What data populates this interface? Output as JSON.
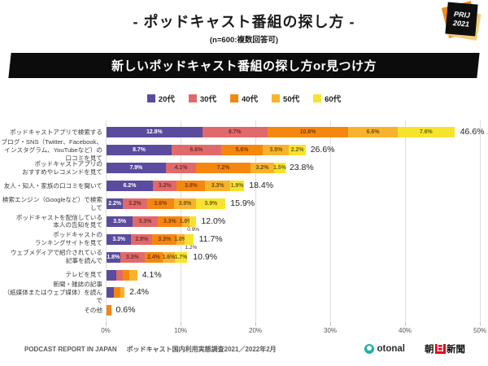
{
  "badge": {
    "line1": "PRIJ",
    "line2": "2021"
  },
  "header": {
    "title": "- ポッドキャスト番組の探し方 -",
    "subtitle": "(n=600:複数回答可)"
  },
  "banner": {
    "text": "新しいポッドキャスト番組の探し方or見つけ方"
  },
  "legend": [
    {
      "label": "20代",
      "color": "#5B4B9E"
    },
    {
      "label": "30代",
      "color": "#E06A6B"
    },
    {
      "label": "40代",
      "color": "#F5870F"
    },
    {
      "label": "50代",
      "color": "#F8B32C"
    },
    {
      "label": "60代",
      "color": "#F7E32E"
    }
  ],
  "chart_data": {
    "type": "bar",
    "orientation": "horizontal_stacked",
    "title": "新しいポッドキャスト番組の探し方or見つけ方",
    "series": [
      "20代",
      "30代",
      "40代",
      "50代",
      "60代"
    ],
    "colors": [
      "#5B4B9E",
      "#E06A6B",
      "#F5870F",
      "#F8B32C",
      "#F7E32E"
    ],
    "segment_label_colors": [
      "#ffffff",
      "#6e2f2f",
      "#7a3a10",
      "#6e4e10",
      "#6b6414"
    ],
    "xlim": [
      0,
      50
    ],
    "x_ticks": [
      "0%",
      "10%",
      "20%",
      "30%",
      "40%",
      "50%"
    ],
    "grid": true,
    "legend_position": "top",
    "rows": [
      {
        "label_lines": [
          "ポッドキャストアプリで検索する"
        ],
        "values": [
          12.8,
          8.7,
          10.8,
          6.6,
          7.6
        ],
        "labels": [
          "12.8%",
          "8.7%",
          "10.8%",
          "6.6%",
          "7.6%"
        ],
        "total": 46.6,
        "total_label": "46.6%"
      },
      {
        "label_lines": [
          "ブログ・SNS（Twitter、Facebook、",
          "インスタグラム、YouTubeなど）の口コミを見て"
        ],
        "values": [
          8.7,
          6.6,
          5.6,
          3.5,
          2.2
        ],
        "labels": [
          "8.7%",
          "6.6%",
          "5.6%",
          "3.5%",
          "2.2%"
        ],
        "total": 26.6,
        "total_label": "26.6%"
      },
      {
        "label_lines": [
          "ポッドキャストアプリの",
          "おすすめやレコメンドを見て"
        ],
        "values": [
          7.9,
          4.1,
          7.2,
          3.2,
          1.5
        ],
        "labels": [
          "7.9%",
          "4.1%",
          "7.2%",
          "3.2%",
          "1.5%"
        ],
        "total": 23.8,
        "total_label": "23.8%"
      },
      {
        "label_lines": [
          "友人・知人・家族の口コミを聞いて"
        ],
        "values": [
          6.2,
          3.2,
          3.8,
          3.3,
          1.9
        ],
        "labels": [
          "6.2%",
          "3.2%",
          "3.8%",
          "3.3%",
          "1.9%"
        ],
        "total": 18.4,
        "total_label": "18.4%"
      },
      {
        "label_lines": [
          "検索エンジン（Googleなど）で検索して"
        ],
        "values": [
          2.2,
          3.2,
          3.6,
          3.0,
          3.9
        ],
        "labels": [
          "2.2%",
          "3.2%",
          "3.6%",
          "3.0%",
          "3.9%"
        ],
        "total": 15.9,
        "total_label": "15.9%"
      },
      {
        "label_lines": [
          "ポッドキャストを配信している",
          "本人の告知を見て"
        ],
        "values": [
          3.5,
          3.3,
          3.3,
          1.0,
          0.9
        ],
        "labels": [
          "3.5%",
          "3.3%",
          "3.3%",
          "1.0%",
          ""
        ],
        "total": 12.0,
        "total_label": "12.0%",
        "callout": "0.9%"
      },
      {
        "label_lines": [
          "ポッドキャストの",
          "ランキングサイトを見て"
        ],
        "values": [
          3.3,
          2.8,
          3.3,
          1.0,
          1.2
        ],
        "labels": [
          "3.3%",
          "2.8%",
          "3.3%",
          "1.0%",
          ""
        ],
        "total": 11.7,
        "total_label": "11.7%",
        "callout": "1.2%"
      },
      {
        "label_lines": [
          "ウェブメディアで紹介されている",
          "記事を読んで"
        ],
        "values": [
          1.8,
          3.3,
          2.4,
          1.6,
          1.7
        ],
        "labels": [
          "1.8%",
          "3.3%",
          "2.4%",
          "1.6%",
          "1.7%"
        ],
        "total": 10.9,
        "total_label": "10.9%"
      },
      {
        "label_lines": [
          "テレビを見て"
        ],
        "values": [
          1.3,
          0.9,
          0.9,
          1.0,
          0
        ],
        "labels": [
          "",
          "",
          "",
          "",
          ""
        ],
        "total": 4.1,
        "total_label": "4.1%"
      },
      {
        "label_lines": [
          "新聞・雑誌の記事",
          "（紙媒体またはウェブ媒体）を読んで"
        ],
        "values": [
          1.0,
          0,
          0.8,
          0.6,
          0
        ],
        "labels": [
          "",
          "",
          "",
          "",
          ""
        ],
        "total": 2.4,
        "total_label": "2.4%"
      },
      {
        "label_lines": [
          "その他"
        ],
        "values": [
          0,
          0,
          0.6,
          0,
          0
        ],
        "labels": [
          "",
          "",
          "",
          "",
          ""
        ],
        "total": 0.6,
        "total_label": "0.6%"
      }
    ]
  },
  "footer": {
    "report_name": "PODCAST REPORT IN JAPAN",
    "survey_name": "ポッドキャスト国内利用実態調査2021／2022年2月",
    "otonal": "otonal",
    "asahi": {
      "p1": "朝",
      "p2": "日",
      "p3": "新聞"
    }
  }
}
